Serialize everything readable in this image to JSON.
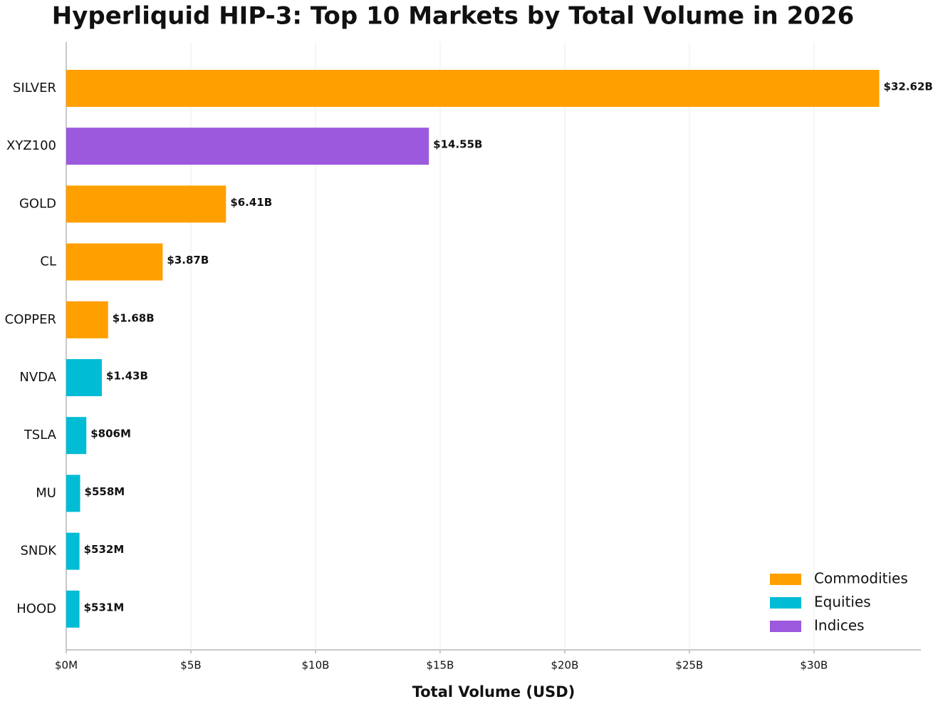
{
  "chart_data": {
    "type": "hbar",
    "title": "Hyperliquid HIP-3: Top 10 Markets by Total Volume in 2026",
    "x_label": "Total Volume (USD)",
    "categories": [
      "SILVER",
      "XYZ100",
      "GOLD",
      "CL",
      "COPPER",
      "NVDA",
      "TSLA",
      "MU",
      "SNDK",
      "HOOD"
    ],
    "series": [
      {
        "name": "Commodities",
        "color": "#ffa000",
        "values": [
          32620000000,
          null,
          6410000000,
          3870000000,
          1680000000,
          null,
          null,
          null,
          null,
          null
        ],
        "value_labels": [
          "$32.62B",
          null,
          "$6.41B",
          "$3.87B",
          "$1.68B",
          null,
          null,
          null,
          null,
          null
        ]
      },
      {
        "name": "Equities",
        "color": "#00bcd4",
        "values": [
          null,
          null,
          null,
          null,
          null,
          1430000000,
          806000000,
          558000000,
          532000000,
          531000000
        ],
        "value_labels": [
          null,
          null,
          null,
          null,
          null,
          "$1.43B",
          "$806M",
          "$558M",
          "$532M",
          "$531M"
        ]
      },
      {
        "name": "Indices",
        "color": "#9b59de",
        "values": [
          null,
          14550000000,
          null,
          null,
          null,
          null,
          null,
          null,
          null,
          null
        ],
        "value_labels": [
          null,
          "$14.55B",
          null,
          null,
          null,
          null,
          null,
          null,
          null,
          null
        ]
      }
    ],
    "xlim": [
      0,
      34290000000
    ],
    "xticks": [
      {
        "value": 0,
        "label": "$0M"
      },
      {
        "value": 5000000000,
        "label": "$5B"
      },
      {
        "value": 10000000000,
        "label": "$10B"
      },
      {
        "value": 15000000000,
        "label": "$15B"
      },
      {
        "value": 20000000000,
        "label": "$20B"
      },
      {
        "value": 25000000000,
        "label": "$25B"
      },
      {
        "value": 30000000000,
        "label": "$30B"
      }
    ],
    "grid": true,
    "legend": "lower right"
  }
}
